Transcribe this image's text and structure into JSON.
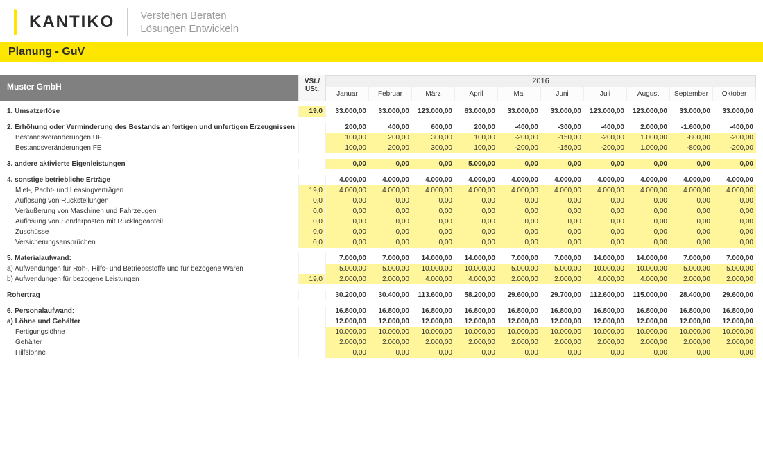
{
  "brand": {
    "logo": "KANTIKO",
    "tagline1": "Verstehen Beraten",
    "tagline2": "Lösungen Entwickeln"
  },
  "page_title": "Planung - GuV",
  "company": "Muster GmbH",
  "vst_header1": "VSt./",
  "vst_header2": "USt.",
  "year": "2016",
  "months": [
    "Januar",
    "Februar",
    "März",
    "April",
    "Mai",
    "Juni",
    "Juli",
    "August",
    "September",
    "Oktober"
  ],
  "rows": [
    {
      "type": "spacer"
    },
    {
      "label": "1. Umsatzerlöse",
      "bold": true,
      "vst": "19,0",
      "vst_hl": true,
      "vals": [
        "33.000,00",
        "33.000,00",
        "123.000,00",
        "63.000,00",
        "33.000,00",
        "33.000,00",
        "123.000,00",
        "123.000,00",
        "33.000,00",
        "33.000,00"
      ]
    },
    {
      "type": "spacer"
    },
    {
      "label": "2. Erhöhung oder Verminderung des Bestands an fertigen und unfertigen Erzeugnissen",
      "bold": true,
      "vals": [
        "200,00",
        "400,00",
        "600,00",
        "200,00",
        "-400,00",
        "-300,00",
        "-400,00",
        "2.000,00",
        "-1.600,00",
        "-400,00"
      ]
    },
    {
      "label": "Bestandsveränderungen UF",
      "indent": 1,
      "hl": true,
      "vals": [
        "100,00",
        "200,00",
        "300,00",
        "100,00",
        "-200,00",
        "-150,00",
        "-200,00",
        "1.000,00",
        "-800,00",
        "-200,00"
      ]
    },
    {
      "label": "Bestandsveränderungen FE",
      "indent": 1,
      "hl": true,
      "vals": [
        "100,00",
        "200,00",
        "300,00",
        "100,00",
        "-200,00",
        "-150,00",
        "-200,00",
        "1.000,00",
        "-800,00",
        "-200,00"
      ]
    },
    {
      "type": "spacer"
    },
    {
      "label": "3. andere aktivierte Eigenleistungen",
      "bold": true,
      "hl": true,
      "vals": [
        "0,00",
        "0,00",
        "0,00",
        "5.000,00",
        "0,00",
        "0,00",
        "0,00",
        "0,00",
        "0,00",
        "0,00"
      ]
    },
    {
      "type": "spacer"
    },
    {
      "label": "4. sonstige betriebliche Erträge",
      "bold": true,
      "vals": [
        "4.000,00",
        "4.000,00",
        "4.000,00",
        "4.000,00",
        "4.000,00",
        "4.000,00",
        "4.000,00",
        "4.000,00",
        "4.000,00",
        "4.000,00"
      ]
    },
    {
      "label": "Miet-, Pacht- und Leasingverträgen",
      "indent": 1,
      "vst": "19,0",
      "vst_hl": true,
      "hl": true,
      "vals": [
        "4.000,00",
        "4.000,00",
        "4.000,00",
        "4.000,00",
        "4.000,00",
        "4.000,00",
        "4.000,00",
        "4.000,00",
        "4.000,00",
        "4.000,00"
      ]
    },
    {
      "label": "Auflösung von Rückstellungen",
      "indent": 1,
      "vst": "0,0",
      "vst_hl": true,
      "hl": true,
      "vals": [
        "0,00",
        "0,00",
        "0,00",
        "0,00",
        "0,00",
        "0,00",
        "0,00",
        "0,00",
        "0,00",
        "0,00"
      ]
    },
    {
      "label": "Veräußerung von Maschinen und Fahrzeugen",
      "indent": 1,
      "vst": "0,0",
      "vst_hl": true,
      "hl": true,
      "vals": [
        "0,00",
        "0,00",
        "0,00",
        "0,00",
        "0,00",
        "0,00",
        "0,00",
        "0,00",
        "0,00",
        "0,00"
      ]
    },
    {
      "label": "Auflösung von Sonderposten mit Rücklageanteil",
      "indent": 1,
      "vst": "0,0",
      "vst_hl": true,
      "hl": true,
      "vals": [
        "0,00",
        "0,00",
        "0,00",
        "0,00",
        "0,00",
        "0,00",
        "0,00",
        "0,00",
        "0,00",
        "0,00"
      ]
    },
    {
      "label": "Zuschüsse",
      "indent": 1,
      "vst": "0,0",
      "vst_hl": true,
      "hl": true,
      "vals": [
        "0,00",
        "0,00",
        "0,00",
        "0,00",
        "0,00",
        "0,00",
        "0,00",
        "0,00",
        "0,00",
        "0,00"
      ]
    },
    {
      "label": "Versicherungsansprüchen",
      "indent": 1,
      "vst": "0,0",
      "vst_hl": true,
      "hl": true,
      "vals": [
        "0,00",
        "0,00",
        "0,00",
        "0,00",
        "0,00",
        "0,00",
        "0,00",
        "0,00",
        "0,00",
        "0,00"
      ]
    },
    {
      "type": "spacer"
    },
    {
      "label": "5. Materialaufwand:",
      "bold": true,
      "vals": [
        "7.000,00",
        "7.000,00",
        "14.000,00",
        "14.000,00",
        "7.000,00",
        "7.000,00",
        "14.000,00",
        "14.000,00",
        "7.000,00",
        "7.000,00"
      ]
    },
    {
      "label": "a) Aufwendungen für Roh-, Hilfs- und Betriebsstoffe und für bezogene Waren",
      "hl": true,
      "vals": [
        "5.000,00",
        "5.000,00",
        "10.000,00",
        "10.000,00",
        "5.000,00",
        "5.000,00",
        "10.000,00",
        "10.000,00",
        "5.000,00",
        "5.000,00"
      ]
    },
    {
      "label": "b) Aufwendungen für bezogene Leistungen",
      "vst": "19,0",
      "vst_hl": true,
      "hl": true,
      "vals": [
        "2.000,00",
        "2.000,00",
        "4.000,00",
        "4.000,00",
        "2.000,00",
        "2.000,00",
        "4.000,00",
        "4.000,00",
        "2.000,00",
        "2.000,00"
      ]
    },
    {
      "type": "spacer"
    },
    {
      "label": "Rohertrag",
      "bold": true,
      "vals": [
        "30.200,00",
        "30.400,00",
        "113.600,00",
        "58.200,00",
        "29.600,00",
        "29.700,00",
        "112.600,00",
        "115.000,00",
        "28.400,00",
        "29.600,00"
      ]
    },
    {
      "type": "spacer"
    },
    {
      "label": "6. Personalaufwand:",
      "bold": true,
      "vals": [
        "16.800,00",
        "16.800,00",
        "16.800,00",
        "16.800,00",
        "16.800,00",
        "16.800,00",
        "16.800,00",
        "16.800,00",
        "16.800,00",
        "16.800,00"
      ]
    },
    {
      "label": "a) Löhne und Gehälter",
      "bold": true,
      "vals": [
        "12.000,00",
        "12.000,00",
        "12.000,00",
        "12.000,00",
        "12.000,00",
        "12.000,00",
        "12.000,00",
        "12.000,00",
        "12.000,00",
        "12.000,00"
      ]
    },
    {
      "label": "Fertigungslöhne",
      "indent": 1,
      "hl": true,
      "vals": [
        "10.000,00",
        "10.000,00",
        "10.000,00",
        "10.000,00",
        "10.000,00",
        "10.000,00",
        "10.000,00",
        "10.000,00",
        "10.000,00",
        "10.000,00"
      ]
    },
    {
      "label": "Gehälter",
      "indent": 1,
      "hl": true,
      "vals": [
        "2.000,00",
        "2.000,00",
        "2.000,00",
        "2.000,00",
        "2.000,00",
        "2.000,00",
        "2.000,00",
        "2.000,00",
        "2.000,00",
        "2.000,00"
      ]
    },
    {
      "label": "Hilfslöhne",
      "indent": 1,
      "hl": true,
      "vals": [
        "0,00",
        "0,00",
        "0,00",
        "0,00",
        "0,00",
        "0,00",
        "0,00",
        "0,00",
        "0,00",
        "0,00"
      ]
    }
  ]
}
